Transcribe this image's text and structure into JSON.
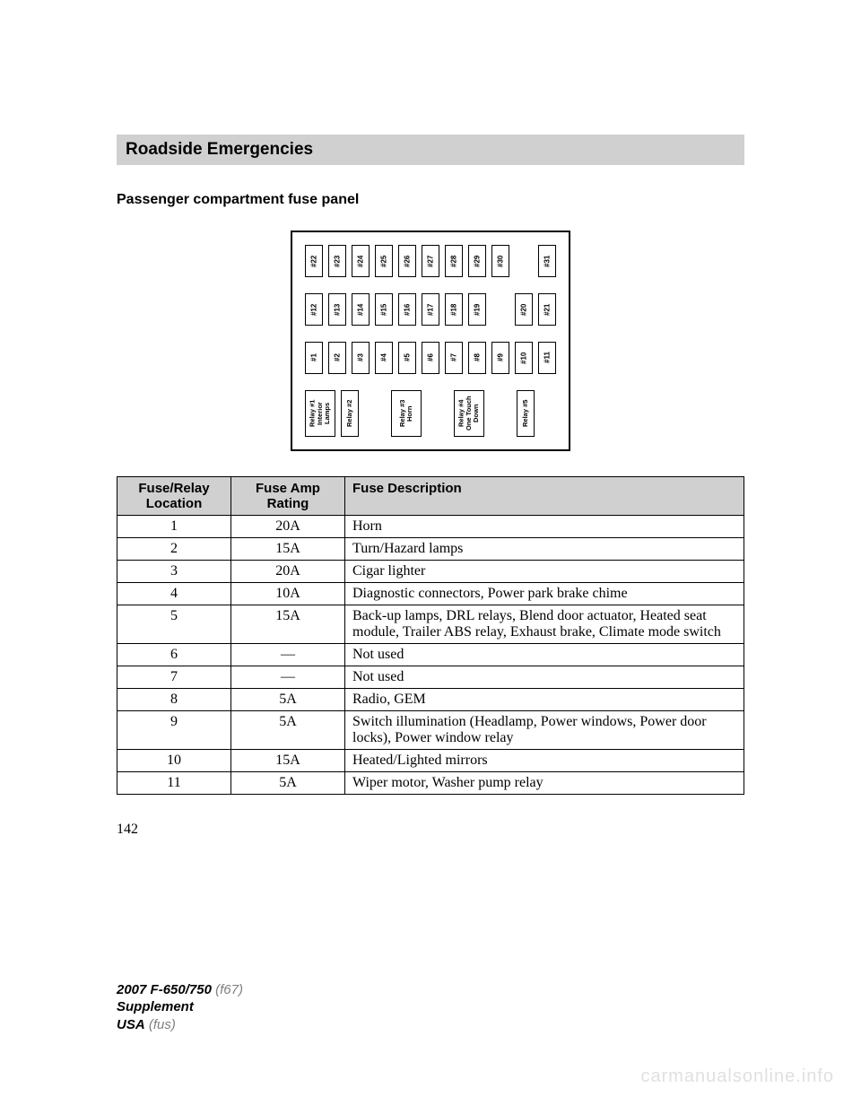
{
  "header": {
    "section_title": "Roadside Emergencies",
    "subheading": "Passenger compartment fuse panel"
  },
  "fuse_diagram": {
    "row_top": [
      "#22",
      "#23",
      "#24",
      "#25",
      "#26",
      "#27",
      "#28",
      "#29",
      "#30",
      "",
      "#31"
    ],
    "row_middle": [
      "#12",
      "#13",
      "#14",
      "#15",
      "#16",
      "#17",
      "#18",
      "#19",
      "",
      "#20",
      "#21"
    ],
    "row_bottom": [
      "#1",
      "#2",
      "#3",
      "#4",
      "#5",
      "#6",
      "#7",
      "#8",
      "#9",
      "#10",
      "#11"
    ],
    "relays": [
      {
        "label": "Relay #1\nInterior\nLamps",
        "width": "wide"
      },
      {
        "label": "Relay #2",
        "width": "narrow"
      },
      {
        "label": "",
        "width": "gap",
        "gap_w": 24
      },
      {
        "label": "Relay #3\nHorn",
        "width": "wide"
      },
      {
        "label": "",
        "width": "gap",
        "gap_w": 24
      },
      {
        "label": "Relay #4\nOne Touch\nDown",
        "width": "wide"
      },
      {
        "label": "",
        "width": "gap",
        "gap_w": 24
      },
      {
        "label": "Relay #5",
        "width": "narrow"
      }
    ]
  },
  "fuse_table": {
    "headers": {
      "location": "Fuse/Relay\nLocation",
      "rating": "Fuse Amp\nRating",
      "description": "Fuse Description"
    },
    "rows": [
      {
        "loc": "1",
        "amp": "20A",
        "desc": "Horn"
      },
      {
        "loc": "2",
        "amp": "15A",
        "desc": "Turn/Hazard lamps"
      },
      {
        "loc": "3",
        "amp": "20A",
        "desc": "Cigar lighter"
      },
      {
        "loc": "4",
        "amp": "10A",
        "desc": "Diagnostic connectors, Power park brake chime"
      },
      {
        "loc": "5",
        "amp": "15A",
        "desc": "Back-up lamps, DRL relays, Blend door actuator, Heated seat module, Trailer ABS relay, Exhaust brake, Climate mode switch"
      },
      {
        "loc": "6",
        "amp": "—",
        "desc": "Not used"
      },
      {
        "loc": "7",
        "amp": "—",
        "desc": "Not used"
      },
      {
        "loc": "8",
        "amp": "5A",
        "desc": "Radio, GEM"
      },
      {
        "loc": "9",
        "amp": "5A",
        "desc": "Switch illumination (Headlamp, Power windows, Power door locks), Power window relay"
      },
      {
        "loc": "10",
        "amp": "15A",
        "desc": "Heated/Lighted mirrors"
      },
      {
        "loc": "11",
        "amp": "5A",
        "desc": "Wiper motor, Washer pump relay"
      }
    ]
  },
  "page_number": "142",
  "footer": {
    "model": "2007 F-650/750",
    "model_code": "(f67)",
    "supplement": "Supplement",
    "market": "USA",
    "market_code": "(fus)"
  },
  "watermark": "carmanualsonline.info",
  "colors": {
    "header_bg": "#d0d0d0",
    "text": "#000000",
    "watermark": "#e0e0e0",
    "footer_gray": "#808080"
  }
}
